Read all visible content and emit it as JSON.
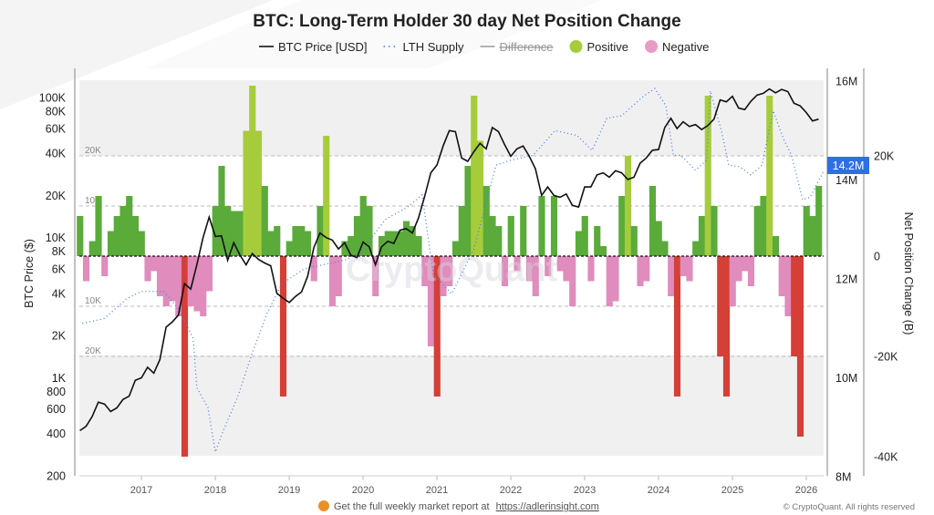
{
  "chart_data": {
    "type": "bar+line",
    "title": "BTC: Long-Term Holder 30 day Net Position Change",
    "legend": [
      {
        "label": "BTC Price [USD]",
        "style": "line",
        "color": "#111111",
        "enabled": true
      },
      {
        "label": "LTH Supply",
        "style": "dotted",
        "color": "#4a7cf0",
        "enabled": true
      },
      {
        "label": "Difference",
        "style": "line",
        "color": "#999999",
        "enabled": false
      },
      {
        "label": "Positive",
        "style": "dot",
        "color": "#a6cc3c",
        "enabled": true
      },
      {
        "label": "Negative",
        "style": "dot",
        "color": "#e89bc4",
        "enabled": true
      }
    ],
    "legend_position": "top-center",
    "xlabel": "",
    "x_ticks": [
      "2017",
      "2018",
      "2019",
      "2020",
      "2021",
      "2022",
      "2023",
      "2024",
      "2025",
      "2026"
    ],
    "x_range": [
      2016.16,
      2026.24
    ],
    "left_axis": {
      "label": "BTC Price ($)",
      "scale": "log",
      "range": [
        200,
        160000
      ],
      "ticks": [
        {
          "v": 100000,
          "l": "100K"
        },
        {
          "v": 80000,
          "l": "80K"
        },
        {
          "v": 60000,
          "l": "60K"
        },
        {
          "v": 40000,
          "l": "40K"
        },
        {
          "v": 20000,
          "l": "20K"
        },
        {
          "v": 10000,
          "l": "10K"
        },
        {
          "v": 8000,
          "l": "8K"
        },
        {
          "v": 6000,
          "l": "6K"
        },
        {
          "v": 4000,
          "l": "4K"
        },
        {
          "v": 2000,
          "l": "2K"
        },
        {
          "v": 1000,
          "l": "1K"
        },
        {
          "v": 800,
          "l": "800"
        },
        {
          "v": 600,
          "l": "600"
        },
        {
          "v": 400,
          "l": "400"
        },
        {
          "v": 200,
          "l": "200"
        }
      ]
    },
    "lth_axis": {
      "range": [
        8,
        16
      ],
      "unit": "M",
      "ticks": [
        {
          "v": 16,
          "l": "16M"
        },
        {
          "v": 14,
          "l": "14M"
        },
        {
          "v": 12,
          "l": "12M"
        },
        {
          "v": 10,
          "l": "10M"
        },
        {
          "v": 8,
          "l": "8M"
        }
      ],
      "current_value_label": "14.2M",
      "current_value": 14.2
    },
    "right_axis": {
      "label": "Net Position Change (B)",
      "unit": "K",
      "ticks": [
        {
          "v": 20,
          "l": "20K"
        },
        {
          "v": 0,
          "l": "0"
        },
        {
          "v": -20,
          "l": "-20K"
        },
        {
          "v": -40,
          "l": "-40K"
        }
      ]
    },
    "guide_lines": [
      {
        "v": 20,
        "l": "20K"
      },
      {
        "v": 10,
        "l": "10K"
      },
      {
        "v": -10,
        "l": "10K"
      },
      {
        "v": -20,
        "l": "20K"
      }
    ],
    "net_position": {
      "start": 2016.167,
      "step_years": 0.08333,
      "unit": "thousand BTC",
      "highlight_threshold": 20,
      "colors": {
        "positive": "#5aab3a",
        "positive_extreme": "#a6cc3c",
        "negative": "#e08cbc",
        "negative_extreme": "#d43f36"
      },
      "values": [
        8,
        -5,
        3,
        12,
        -4,
        5,
        8,
        10,
        12,
        8,
        5,
        -5,
        -3,
        -8,
        -10,
        -9,
        -12,
        -40,
        -10,
        -11,
        -12,
        -7,
        10,
        18,
        10,
        9,
        9,
        25,
        34,
        25,
        14,
        5,
        6,
        -28,
        3,
        6,
        6,
        5,
        -5,
        10,
        24,
        -10,
        -8,
        3,
        4,
        8,
        12,
        10,
        -8,
        4,
        5,
        5,
        5,
        7,
        6,
        4,
        -6,
        -18,
        -28,
        -8,
        -6,
        3,
        10,
        18,
        32,
        23,
        14,
        8,
        6,
        -6,
        8,
        -3,
        10,
        -5,
        -8,
        12,
        -4,
        12,
        -3,
        -5,
        -10,
        5,
        8,
        -5,
        6,
        2,
        -10,
        -9,
        12,
        20,
        6,
        -6,
        -5,
        14,
        7,
        3,
        -8,
        -28,
        -4,
        -5,
        3,
        8,
        32,
        10,
        -20,
        -28,
        -10,
        -5,
        -3,
        -6,
        10,
        12,
        32,
        4,
        -8,
        -12,
        -20,
        -36,
        10,
        8,
        14
      ]
    },
    "btc_price": {
      "start": 2016.167,
      "step_years": 0.08333,
      "unit": "USD",
      "values": [
        420,
        450,
        530,
        670,
        650,
        575,
        610,
        700,
        740,
        960,
        1000,
        1190,
        1080,
        1350,
        2300,
        2500,
        2800,
        4700,
        4300,
        6400,
        10000,
        14000,
        10200,
        10300,
        6900,
        9200,
        7500,
        6400,
        7700,
        7000,
        6600,
        6300,
        4000,
        3700,
        3450,
        3800,
        4100,
        5300,
        8500,
        10800,
        10000,
        9600,
        8300,
        9200,
        7500,
        7200,
        9300,
        8600,
        6400,
        8600,
        9400,
        9100,
        11300,
        11600,
        10800,
        13800,
        19700,
        29000,
        33000,
        45000,
        58000,
        57000,
        37000,
        35000,
        41000,
        47000,
        43000,
        61000,
        57000,
        46000,
        38000,
        43000,
        45000,
        38000,
        31000,
        20000,
        23000,
        20000,
        19400,
        20500,
        17000,
        16500,
        23000,
        23000,
        28000,
        29000,
        27000,
        30000,
        29000,
        26000,
        27000,
        34000,
        37000,
        42000,
        42500,
        61000,
        71000,
        60000,
        67000,
        62000,
        64000,
        59000,
        63000,
        70000,
        96000,
        93000,
        102000,
        84000,
        82000,
        94000,
        104000,
        107000,
        115000,
        108000,
        114000,
        110000,
        91000,
        87000,
        78000,
        68000,
        70000
      ]
    },
    "lth_supply": {
      "unit": "million BTC",
      "points": [
        [
          2016.2,
          11.1
        ],
        [
          2016.5,
          11.2
        ],
        [
          2016.8,
          11.6
        ],
        [
          2017.0,
          11.75
        ],
        [
          2017.3,
          11.75
        ],
        [
          2017.5,
          11.4
        ],
        [
          2017.7,
          10.8
        ],
        [
          2017.75,
          9.8
        ],
        [
          2017.9,
          9.4
        ],
        [
          2018.0,
          8.5
        ],
        [
          2018.1,
          8.9
        ],
        [
          2018.3,
          9.6
        ],
        [
          2018.5,
          10.5
        ],
        [
          2018.7,
          11.3
        ],
        [
          2018.9,
          11.9
        ],
        [
          2019.2,
          12.2
        ],
        [
          2019.5,
          12.3
        ],
        [
          2019.8,
          12.4
        ],
        [
          2020.0,
          12.6
        ],
        [
          2020.3,
          13.2
        ],
        [
          2020.6,
          13.45
        ],
        [
          2020.8,
          13.7
        ],
        [
          2020.95,
          12.1
        ],
        [
          2021.2,
          11.7
        ],
        [
          2021.5,
          12.6
        ],
        [
          2021.8,
          14.3
        ],
        [
          2022.0,
          14.4
        ],
        [
          2022.3,
          14.5
        ],
        [
          2022.6,
          15.0
        ],
        [
          2022.9,
          14.9
        ],
        [
          2023.1,
          14.6
        ],
        [
          2023.3,
          15.25
        ],
        [
          2023.5,
          15.3
        ],
        [
          2023.8,
          15.7
        ],
        [
          2023.95,
          15.85
        ],
        [
          2024.1,
          15.5
        ],
        [
          2024.2,
          14.5
        ],
        [
          2024.3,
          14.5
        ],
        [
          2024.5,
          14.2
        ],
        [
          2024.65,
          14.4
        ],
        [
          2024.7,
          15.8
        ],
        [
          2024.85,
          15.0
        ],
        [
          2024.95,
          14.3
        ],
        [
          2025.1,
          14.27
        ],
        [
          2025.25,
          14.1
        ],
        [
          2025.4,
          14.3
        ],
        [
          2025.55,
          15.4
        ],
        [
          2025.7,
          14.8
        ],
        [
          2025.8,
          14.5
        ],
        [
          2025.95,
          13.6
        ],
        [
          2026.05,
          13.65
        ],
        [
          2026.24,
          14.2
        ]
      ]
    }
  },
  "watermark": "CryptoQuant",
  "footer": {
    "promo_text": "Get the full weekly market report at",
    "promo_link": "https://adlerinsight.com",
    "copyright": "© CryptoQuant. All rights reserved"
  }
}
